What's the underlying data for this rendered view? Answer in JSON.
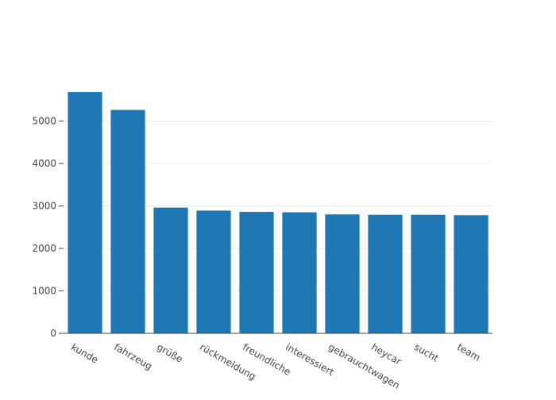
{
  "chart_data": {
    "type": "bar",
    "title": "",
    "xlabel": "",
    "ylabel": "",
    "categories": [
      "kunde",
      "fahrzeug",
      "grüße",
      "rückmeldung",
      "freundliche",
      "interessiert",
      "gebrauchtwagen",
      "heycar",
      "sucht",
      "team"
    ],
    "values": [
      5680,
      5260,
      2960,
      2890,
      2860,
      2850,
      2800,
      2790,
      2790,
      2780
    ],
    "ylim": [
      0,
      5980
    ],
    "yticks": [
      0,
      1000,
      2000,
      3000,
      4000,
      5000
    ],
    "grid": true,
    "legend": "none",
    "bar_color": "#1f77b4",
    "grid_color": "#eeeeee",
    "axis_color": "#444444",
    "tick_label_color": "#444444"
  }
}
